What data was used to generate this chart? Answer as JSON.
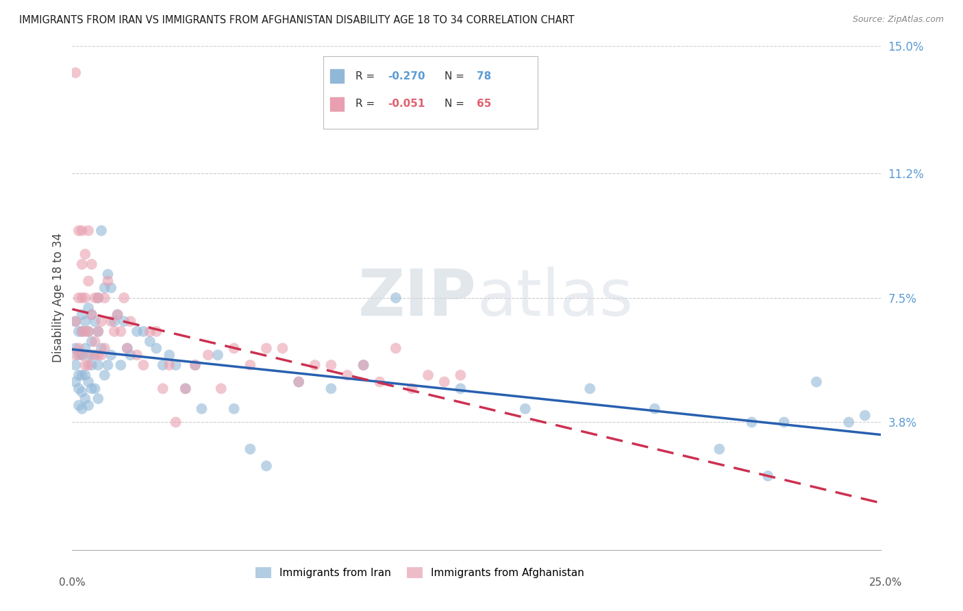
{
  "title": "IMMIGRANTS FROM IRAN VS IMMIGRANTS FROM AFGHANISTAN DISABILITY AGE 18 TO 34 CORRELATION CHART",
  "source": "Source: ZipAtlas.com",
  "ylabel": "Disability Age 18 to 34",
  "right_yticks": [
    0.038,
    0.075,
    0.112,
    0.15
  ],
  "right_ytick_labels": [
    "3.8%",
    "7.5%",
    "11.2%",
    "15.0%"
  ],
  "watermark_zip": "ZIP",
  "watermark_atlas": "atlas",
  "xmin": 0.0,
  "xmax": 0.25,
  "ymin": 0.0,
  "ymax": 0.15,
  "iran_color": "#92b8d8",
  "afghanistan_color": "#e8a0b0",
  "iran_trend_color": "#2860b0",
  "afghanistan_trend_color": "#cc3050",
  "iran_legend_color": "#5b9bd5",
  "afghanistan_legend_color": "#e06070",
  "iran_r": "-0.270",
  "iran_n": "78",
  "afghanistan_r": "-0.051",
  "afghanistan_n": "65",
  "iran_x": [
    0.001,
    0.001,
    0.001,
    0.001,
    0.002,
    0.002,
    0.002,
    0.002,
    0.002,
    0.003,
    0.003,
    0.003,
    0.003,
    0.003,
    0.003,
    0.004,
    0.004,
    0.004,
    0.004,
    0.005,
    0.005,
    0.005,
    0.005,
    0.005,
    0.006,
    0.006,
    0.006,
    0.006,
    0.007,
    0.007,
    0.007,
    0.008,
    0.008,
    0.008,
    0.008,
    0.009,
    0.009,
    0.01,
    0.01,
    0.011,
    0.011,
    0.012,
    0.012,
    0.013,
    0.014,
    0.015,
    0.016,
    0.017,
    0.018,
    0.02,
    0.022,
    0.024,
    0.026,
    0.028,
    0.03,
    0.032,
    0.035,
    0.038,
    0.04,
    0.045,
    0.05,
    0.055,
    0.06,
    0.07,
    0.08,
    0.09,
    0.1,
    0.12,
    0.14,
    0.16,
    0.18,
    0.2,
    0.21,
    0.215,
    0.22,
    0.23,
    0.24,
    0.245
  ],
  "iran_y": [
    0.068,
    0.06,
    0.055,
    0.05,
    0.065,
    0.058,
    0.052,
    0.048,
    0.043,
    0.07,
    0.065,
    0.058,
    0.052,
    0.047,
    0.042,
    0.068,
    0.06,
    0.052,
    0.045,
    0.072,
    0.065,
    0.058,
    0.05,
    0.043,
    0.07,
    0.062,
    0.055,
    0.048,
    0.068,
    0.058,
    0.048,
    0.075,
    0.065,
    0.055,
    0.045,
    0.095,
    0.06,
    0.078,
    0.052,
    0.082,
    0.055,
    0.078,
    0.058,
    0.068,
    0.07,
    0.055,
    0.068,
    0.06,
    0.058,
    0.065,
    0.065,
    0.062,
    0.06,
    0.055,
    0.058,
    0.055,
    0.048,
    0.055,
    0.042,
    0.058,
    0.042,
    0.03,
    0.025,
    0.05,
    0.048,
    0.055,
    0.075,
    0.048,
    0.042,
    0.048,
    0.042,
    0.03,
    0.038,
    0.022,
    0.038,
    0.05,
    0.038,
    0.04
  ],
  "afghanistan_x": [
    0.001,
    0.001,
    0.001,
    0.002,
    0.002,
    0.002,
    0.003,
    0.003,
    0.003,
    0.003,
    0.003,
    0.004,
    0.004,
    0.004,
    0.004,
    0.005,
    0.005,
    0.005,
    0.005,
    0.006,
    0.006,
    0.006,
    0.007,
    0.007,
    0.008,
    0.008,
    0.008,
    0.009,
    0.009,
    0.01,
    0.01,
    0.011,
    0.012,
    0.013,
    0.014,
    0.015,
    0.016,
    0.017,
    0.018,
    0.02,
    0.022,
    0.024,
    0.026,
    0.028,
    0.03,
    0.032,
    0.035,
    0.038,
    0.042,
    0.046,
    0.05,
    0.055,
    0.06,
    0.065,
    0.07,
    0.075,
    0.08,
    0.085,
    0.09,
    0.095,
    0.1,
    0.105,
    0.11,
    0.115,
    0.12
  ],
  "afghanistan_y": [
    0.142,
    0.068,
    0.058,
    0.095,
    0.075,
    0.06,
    0.095,
    0.085,
    0.075,
    0.065,
    0.058,
    0.088,
    0.075,
    0.065,
    0.055,
    0.095,
    0.08,
    0.065,
    0.055,
    0.085,
    0.07,
    0.058,
    0.075,
    0.062,
    0.075,
    0.065,
    0.058,
    0.068,
    0.058,
    0.075,
    0.06,
    0.08,
    0.068,
    0.065,
    0.07,
    0.065,
    0.075,
    0.06,
    0.068,
    0.058,
    0.055,
    0.065,
    0.065,
    0.048,
    0.055,
    0.038,
    0.048,
    0.055,
    0.058,
    0.048,
    0.06,
    0.055,
    0.06,
    0.06,
    0.05,
    0.055,
    0.055,
    0.052,
    0.055,
    0.05,
    0.06,
    0.048,
    0.052,
    0.05,
    0.052
  ]
}
